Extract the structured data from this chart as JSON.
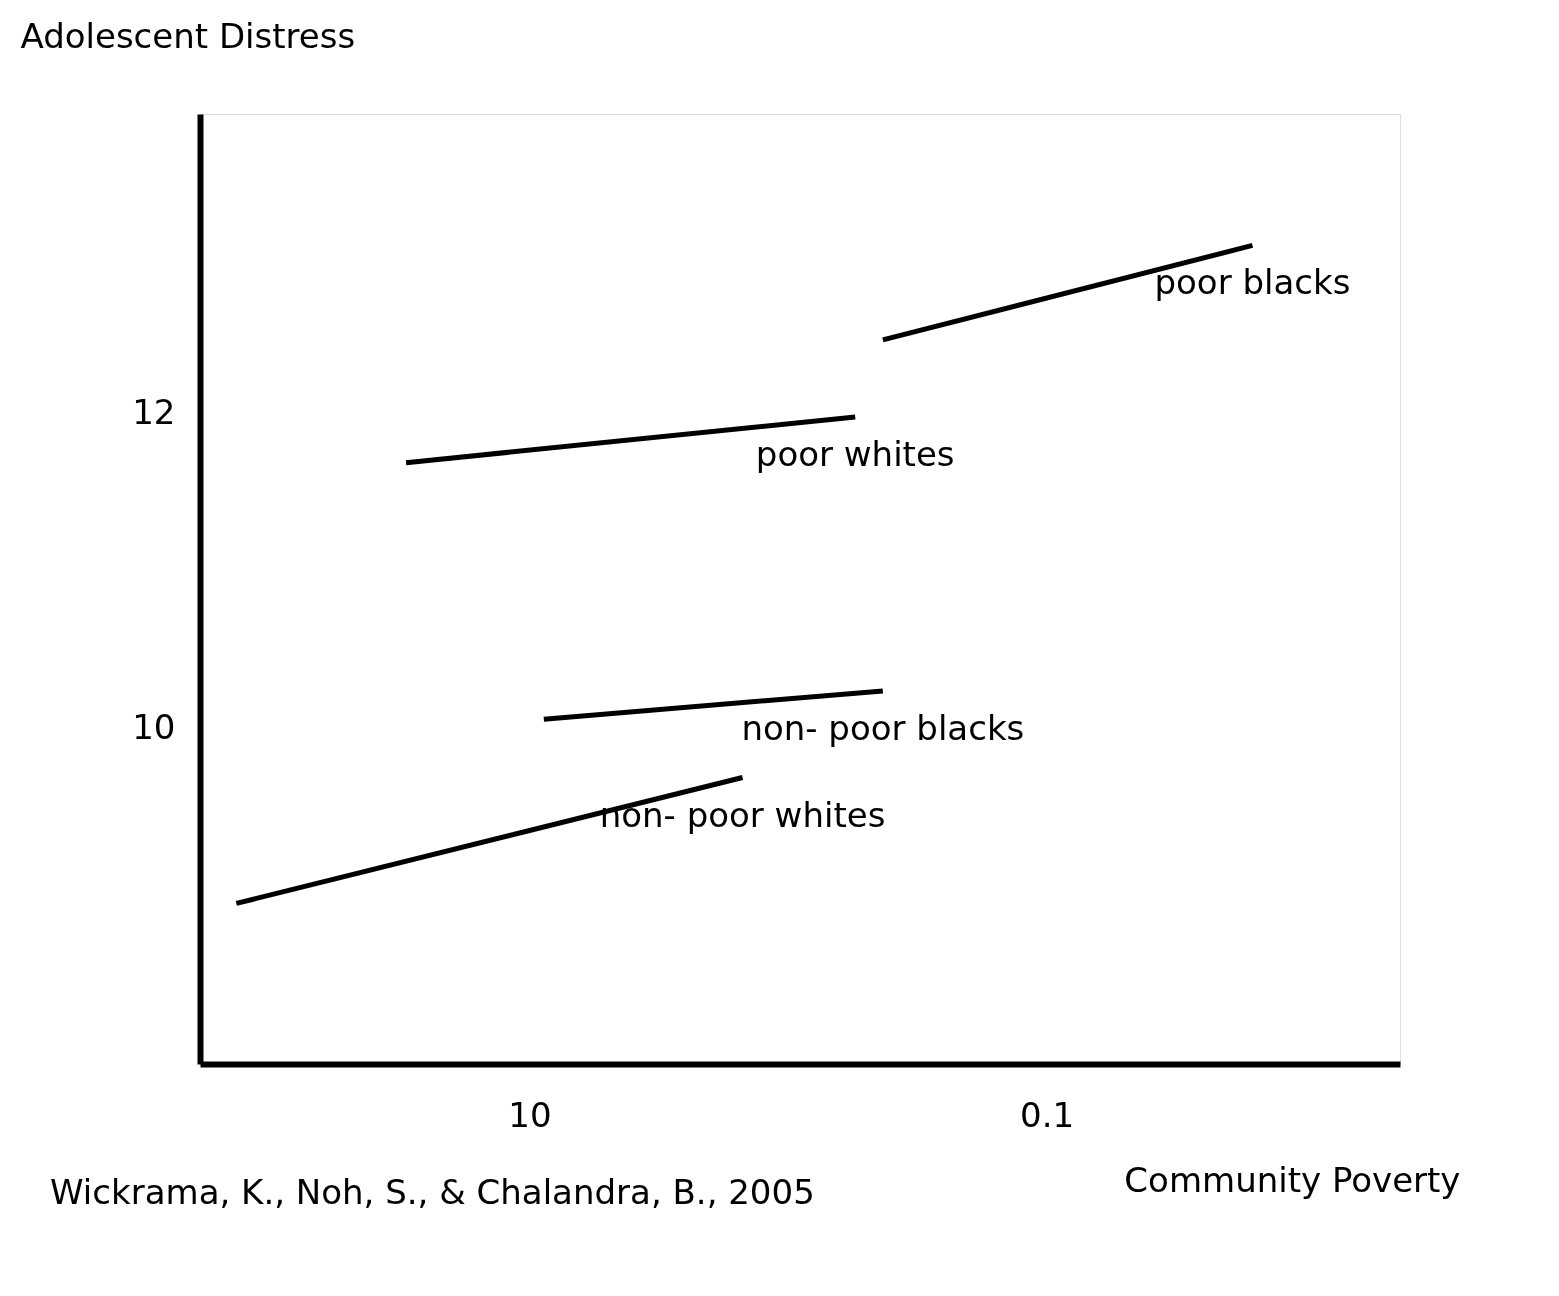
{
  "chart_data": {
    "type": "line",
    "xlabel": "Community Poverty",
    "ylabel": "Adolescent Distress",
    "log": "x",
    "xlim": [
      188,
      0.0043
    ],
    "ylim": [
      7.87,
      13.905
    ],
    "xticks": [
      10,
      0.1
    ],
    "yticks": [
      10,
      12
    ],
    "marker": "none",
    "line_style": "solid",
    "series": [
      {
        "name": "non- poor whites",
        "color": "#000000",
        "x": [
          136,
          1.5
        ],
        "values": [
          8.89,
          9.69
        ]
      },
      {
        "name": "non- poor blacks",
        "color": "#000000",
        "x": [
          8.8,
          0.43
        ],
        "values": [
          10.06,
          10.24
        ]
      },
      {
        "name": "poor whites",
        "color": "#000000",
        "x": [
          30,
          0.55
        ],
        "values": [
          11.69,
          11.98
        ]
      },
      {
        "name": "poor blacks",
        "color": "#000000",
        "x": [
          0.43,
          0.016
        ],
        "values": [
          12.47,
          13.07
        ]
      }
    ],
    "annotations": [
      "Wickrama, K., Noh, S., & Chalandra, B., 2005"
    ]
  }
}
